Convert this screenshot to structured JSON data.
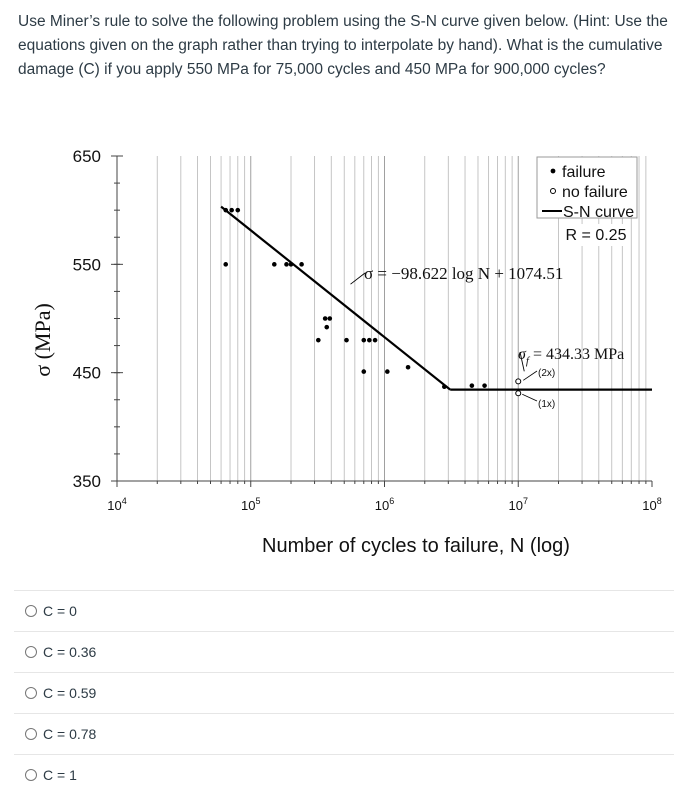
{
  "question": {
    "text": "Use Miner’s rule to solve the following problem using the S-N curve given below. (Hint: Use the equations given on the graph rather than trying to interpolate by hand). What is the cumulative damage (C) if you apply 550 MPa for 75,000 cycles and 450 MPa for 900,000 cycles?"
  },
  "chart_data": {
    "type": "scatter",
    "xscale": "log",
    "xlim": [
      10000,
      100000000
    ],
    "ylim": [
      350,
      650
    ],
    "xlabel": "Number of cycles to failure, N (log)",
    "ylabel": "σ (MPa)",
    "xticks": [
      {
        "value": 10000,
        "base": "10",
        "exp": "4"
      },
      {
        "value": 100000,
        "base": "10",
        "exp": "5"
      },
      {
        "value": 1000000,
        "base": "10",
        "exp": "6"
      },
      {
        "value": 10000000,
        "base": "10",
        "exp": "7"
      },
      {
        "value": 100000000,
        "base": "10",
        "exp": "8"
      }
    ],
    "yticks": [
      650,
      550,
      450,
      350
    ],
    "grid": "vertical minor lines",
    "legend": {
      "position": "top-right",
      "entries": [
        {
          "symbol": "•",
          "label": "failure"
        },
        {
          "symbol": "◦",
          "label": "no failure"
        },
        {
          "symbol": "—",
          "label": "S-N curve"
        }
      ],
      "note": "R = 0.25"
    },
    "sn_curve": {
      "sloped_x": [
        60000,
        3000000
      ],
      "sloped_equation": {
        "slope": -98.622,
        "intercept": 1074.51
      },
      "plateau_y": 434.33,
      "plateau_x_end": 100000000
    },
    "annotations": {
      "equation": "σ = −98.622 log N + 1074.51",
      "endurance": "σf = 434.33 MPa",
      "endurance_symbol": "σ",
      "endurance_sub": "f",
      "endurance_rest": " = 434.33 MPa",
      "runout_2x": "(2x)",
      "runout_1x": "(1x)"
    },
    "failure_points": [
      {
        "x": 65000,
        "y": 600
      },
      {
        "x": 72000,
        "y": 600
      },
      {
        "x": 80000,
        "y": 600
      },
      {
        "x": 65000,
        "y": 550
      },
      {
        "x": 150000,
        "y": 550
      },
      {
        "x": 185000,
        "y": 550
      },
      {
        "x": 200000,
        "y": 550
      },
      {
        "x": 240000,
        "y": 550
      },
      {
        "x": 360000,
        "y": 500
      },
      {
        "x": 390000,
        "y": 500
      },
      {
        "x": 370000,
        "y": 492
      },
      {
        "x": 320000,
        "y": 480
      },
      {
        "x": 520000,
        "y": 480
      },
      {
        "x": 700000,
        "y": 480
      },
      {
        "x": 770000,
        "y": 480
      },
      {
        "x": 850000,
        "y": 480
      },
      {
        "x": 700000,
        "y": 451
      },
      {
        "x": 1050000,
        "y": 451
      },
      {
        "x": 1500000,
        "y": 455
      },
      {
        "x": 2800000,
        "y": 437
      },
      {
        "x": 4500000,
        "y": 438
      },
      {
        "x": 5600000,
        "y": 438
      }
    ],
    "runout_points": [
      {
        "x": 10000000,
        "y": 442
      },
      {
        "x": 10000000,
        "y": 431
      }
    ]
  },
  "choices": [
    {
      "label": "C = 0"
    },
    {
      "label": "C = 0.36"
    },
    {
      "label": "C = 0.59"
    },
    {
      "label": "C = 0.78"
    },
    {
      "label": "C = 1"
    }
  ]
}
